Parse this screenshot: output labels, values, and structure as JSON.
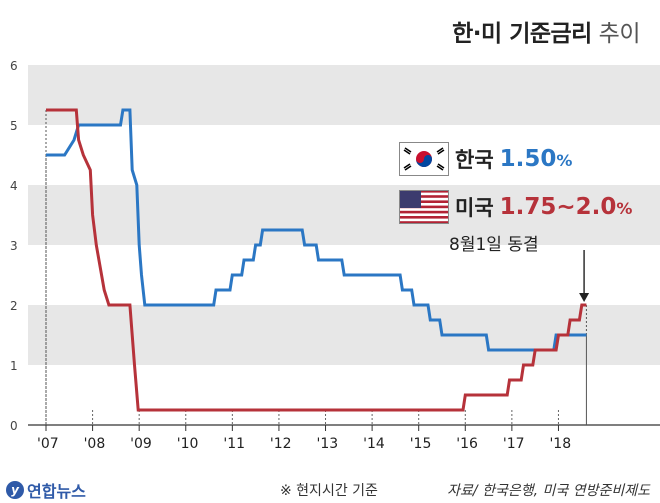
{
  "title": {
    "bold": "한·미 기준금리",
    "light": "추이"
  },
  "legend": {
    "korea": {
      "name": "한국",
      "value": "1.50",
      "unit": "%",
      "color": "#2b77c4",
      "icon": "flag-korea-icon"
    },
    "usa": {
      "name": "미국",
      "value": "1.75~2.0",
      "unit": "%",
      "color": "#b6323a",
      "icon": "flag-usa-icon"
    }
  },
  "note": "8월1일 동결",
  "footer": {
    "logo": "연합뉴스",
    "basis": "※ 현지시간 기준",
    "source": "자료/ 한국은행, 미국 연방준비제도"
  },
  "colors": {
    "band": "#e7e7e7",
    "korea": "#2b77c4",
    "usa": "#b6323a",
    "axis": "#555555"
  },
  "chart_data": {
    "type": "line",
    "title": "한·미 기준금리 추이",
    "ylim": [
      0,
      6
    ],
    "yticks": [
      0,
      1,
      2,
      3,
      4,
      5,
      6
    ],
    "xlim": [
      2007,
      2019.6
    ],
    "xticks": [
      {
        "x": 2007,
        "label": "'07"
      },
      {
        "x": 2008,
        "label": "'08"
      },
      {
        "x": 2009,
        "label": "'09"
      },
      {
        "x": 2010,
        "label": "'10"
      },
      {
        "x": 2011,
        "label": "'11"
      },
      {
        "x": 2012,
        "label": "'12"
      },
      {
        "x": 2013,
        "label": "'13"
      },
      {
        "x": 2014,
        "label": "'14"
      },
      {
        "x": 2015,
        "label": "'15"
      },
      {
        "x": 2016,
        "label": "'16"
      },
      {
        "x": 2017,
        "label": "'17"
      },
      {
        "x": 2018,
        "label": "'18"
      }
    ],
    "grid": "alternating horizontal bands",
    "series": [
      {
        "name": "한국",
        "color": "#2b77c4",
        "step": true,
        "points": [
          [
            2007.0,
            4.5
          ],
          [
            2007.4,
            4.5
          ],
          [
            2007.6,
            4.75
          ],
          [
            2007.7,
            5.0
          ],
          [
            2008.6,
            5.0
          ],
          [
            2008.65,
            5.25
          ],
          [
            2008.8,
            5.25
          ],
          [
            2008.85,
            4.25
          ],
          [
            2008.95,
            4.0
          ],
          [
            2009.0,
            3.0
          ],
          [
            2009.05,
            2.5
          ],
          [
            2009.12,
            2.0
          ],
          [
            2010.6,
            2.0
          ],
          [
            2010.65,
            2.25
          ],
          [
            2010.95,
            2.25
          ],
          [
            2011.0,
            2.5
          ],
          [
            2011.2,
            2.5
          ],
          [
            2011.25,
            2.75
          ],
          [
            2011.45,
            2.75
          ],
          [
            2011.5,
            3.0
          ],
          [
            2011.6,
            3.0
          ],
          [
            2011.65,
            3.25
          ],
          [
            2012.5,
            3.25
          ],
          [
            2012.55,
            3.0
          ],
          [
            2012.8,
            3.0
          ],
          [
            2012.85,
            2.75
          ],
          [
            2013.35,
            2.75
          ],
          [
            2013.4,
            2.5
          ],
          [
            2014.6,
            2.5
          ],
          [
            2014.65,
            2.25
          ],
          [
            2014.85,
            2.25
          ],
          [
            2014.9,
            2.0
          ],
          [
            2015.2,
            2.0
          ],
          [
            2015.25,
            1.75
          ],
          [
            2015.45,
            1.75
          ],
          [
            2015.5,
            1.5
          ],
          [
            2016.45,
            1.5
          ],
          [
            2016.5,
            1.25
          ],
          [
            2017.9,
            1.25
          ],
          [
            2017.95,
            1.5
          ],
          [
            2018.6,
            1.5
          ]
        ]
      },
      {
        "name": "미국",
        "color": "#b6323a",
        "step": true,
        "points": [
          [
            2007.0,
            5.25
          ],
          [
            2007.65,
            5.25
          ],
          [
            2007.7,
            4.75
          ],
          [
            2007.8,
            4.5
          ],
          [
            2007.95,
            4.25
          ],
          [
            2008.0,
            3.5
          ],
          [
            2008.08,
            3.0
          ],
          [
            2008.25,
            2.25
          ],
          [
            2008.35,
            2.0
          ],
          [
            2008.8,
            2.0
          ],
          [
            2008.85,
            1.5
          ],
          [
            2008.9,
            1.0
          ],
          [
            2008.98,
            0.25
          ],
          [
            2015.95,
            0.25
          ],
          [
            2016.0,
            0.5
          ],
          [
            2016.9,
            0.5
          ],
          [
            2016.95,
            0.75
          ],
          [
            2017.2,
            0.75
          ],
          [
            2017.25,
            1.0
          ],
          [
            2017.45,
            1.0
          ],
          [
            2017.5,
            1.25
          ],
          [
            2017.95,
            1.25
          ],
          [
            2018.0,
            1.5
          ],
          [
            2018.2,
            1.5
          ],
          [
            2018.25,
            1.75
          ],
          [
            2018.45,
            1.75
          ],
          [
            2018.5,
            2.0
          ],
          [
            2018.6,
            2.0
          ]
        ]
      }
    ]
  }
}
